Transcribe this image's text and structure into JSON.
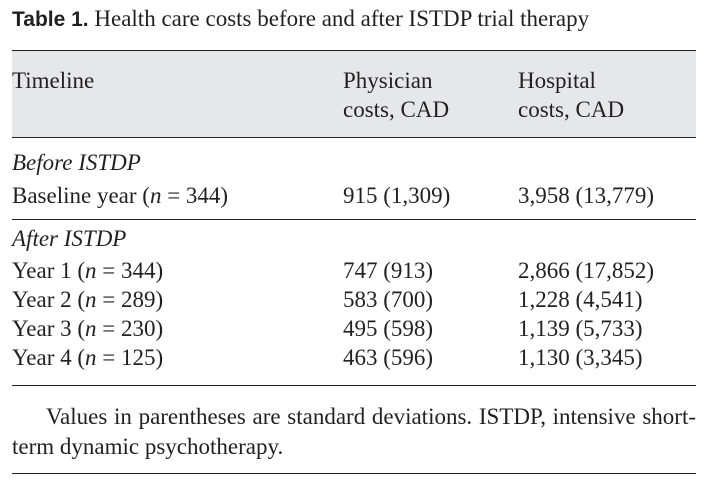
{
  "caption": {
    "label": "Table 1.",
    "text": "Health care costs before and after ISTDP trial therapy"
  },
  "header": {
    "col1": "Timeline",
    "col2_line1": "Physician",
    "col2_line2": "costs, CAD",
    "col3_line1": "Hospital",
    "col3_line2": "costs, CAD"
  },
  "sections": [
    {
      "title": "Before ISTDP",
      "rows": [
        {
          "label": "Baseline year (",
          "n_var": "n",
          "n_rest": " = 344)",
          "physician": "915 (1,309)",
          "hospital": "3,958 (13,779)"
        }
      ]
    },
    {
      "title": "After ISTDP",
      "rows": [
        {
          "label": "Year 1 (",
          "n_var": "n",
          "n_rest": " = 344)",
          "physician": "747 (913)",
          "hospital": "2,866 (17,852)"
        },
        {
          "label": "Year 2 (",
          "n_var": "n",
          "n_rest": " = 289)",
          "physician": "583 (700)",
          "hospital": "1,228 (4,541)"
        },
        {
          "label": "Year 3 (",
          "n_var": "n",
          "n_rest": " = 230)",
          "physician": "495 (598)",
          "hospital": "1,139 (5,733)"
        },
        {
          "label": "Year 4 (",
          "n_var": "n",
          "n_rest": " = 125)",
          "physician": "463 (596)",
          "hospital": "1,130 (3,345)"
        }
      ]
    }
  ],
  "footnote": "Values in parentheses are standard deviations. ISTDP, intensive short-term dynamic psychotherapy."
}
